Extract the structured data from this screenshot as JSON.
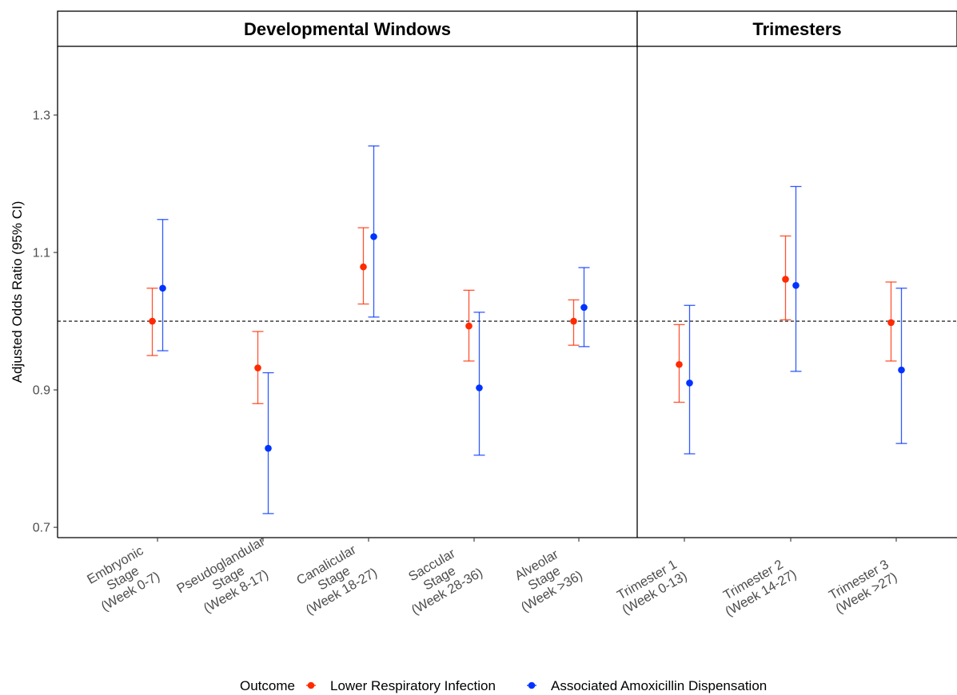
{
  "chart_data": {
    "type": "errorbar",
    "ylabel": "Adjusted Odds Ratio (95% CI)",
    "ylim": [
      0.685,
      1.4
    ],
    "yticks": [
      0.7,
      0.9,
      1.1,
      1.3
    ],
    "ytick_labels": [
      "0.7",
      "0.9",
      "1.1",
      "1.3"
    ],
    "reference_line": 1.0,
    "legend": {
      "title": "Outcome",
      "position": "bottom",
      "entries": [
        "Lower Respiratory Infection",
        "Associated Amoxicillin Dispensation"
      ]
    },
    "colors": {
      "Lower Respiratory Infection": "#ff2a00",
      "Associated Amoxicillin Dispensation": "#0033ff"
    },
    "panels": [
      {
        "name": "Developmental Windows",
        "categories": [
          [
            "Embryonic",
            "Stage",
            "(Week 0-7)"
          ],
          [
            "Pseudoglandular",
            "Stage",
            "(Week 8-17)"
          ],
          [
            "Canalicular",
            "Stage",
            "(Week 18-27)"
          ],
          [
            "Saccular",
            "Stage",
            "(Week 28-36)"
          ],
          [
            "Alveolar",
            "Stage",
            "(Week >36)"
          ]
        ],
        "series": [
          {
            "name": "Lower Respiratory Infection",
            "values": [
              1.0,
              0.932,
              1.079,
              0.993,
              1.0
            ],
            "lower": [
              0.95,
              0.88,
              1.025,
              0.942,
              0.965
            ],
            "upper": [
              1.048,
              0.985,
              1.136,
              1.045,
              1.031
            ]
          },
          {
            "name": "Associated Amoxicillin Dispensation",
            "values": [
              1.048,
              0.815,
              1.123,
              0.903,
              1.02
            ],
            "lower": [
              0.957,
              0.72,
              1.006,
              0.805,
              0.963
            ],
            "upper": [
              1.148,
              0.925,
              1.255,
              1.013,
              1.078
            ]
          }
        ]
      },
      {
        "name": "Trimesters",
        "categories": [
          [
            "Trimester 1",
            "(Week 0-13)"
          ],
          [
            "Trimester 2",
            "(Week 14-27)"
          ],
          [
            "Trimester 3",
            "(Week >27)"
          ]
        ],
        "series": [
          {
            "name": "Lower Respiratory Infection",
            "values": [
              0.937,
              1.061,
              0.998
            ],
            "lower": [
              0.882,
              1.002,
              0.942
            ],
            "upper": [
              0.995,
              1.124,
              1.057
            ]
          },
          {
            "name": "Associated Amoxicillin Dispensation",
            "values": [
              0.91,
              1.052,
              0.929
            ],
            "lower": [
              0.807,
              0.927,
              0.822
            ],
            "upper": [
              1.023,
              1.196,
              1.048
            ]
          }
        ]
      }
    ]
  }
}
